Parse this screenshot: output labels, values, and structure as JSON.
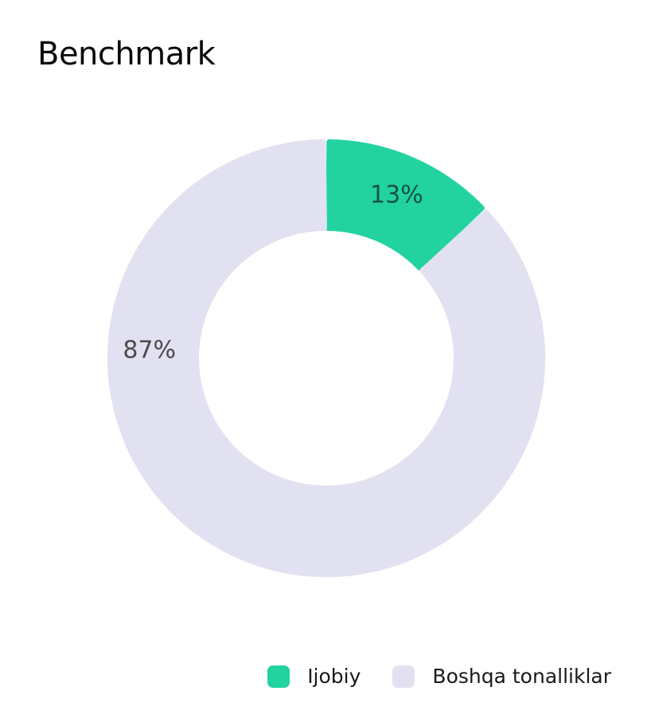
{
  "chart_data": {
    "type": "pie",
    "title": "Benchmark",
    "donut": true,
    "categories": [
      "Ijobiy",
      "Boshqa tonalliklar"
    ],
    "values": [
      13,
      87
    ],
    "value_labels": [
      "13%",
      "87%"
    ],
    "colors": [
      "#22d3a0",
      "#e1e1f2"
    ],
    "label_colors": [
      "#14533f",
      "#4a4a4a"
    ],
    "legend_position": "bottom-right",
    "start_angle_deg": 0,
    "direction": "clockwise"
  }
}
